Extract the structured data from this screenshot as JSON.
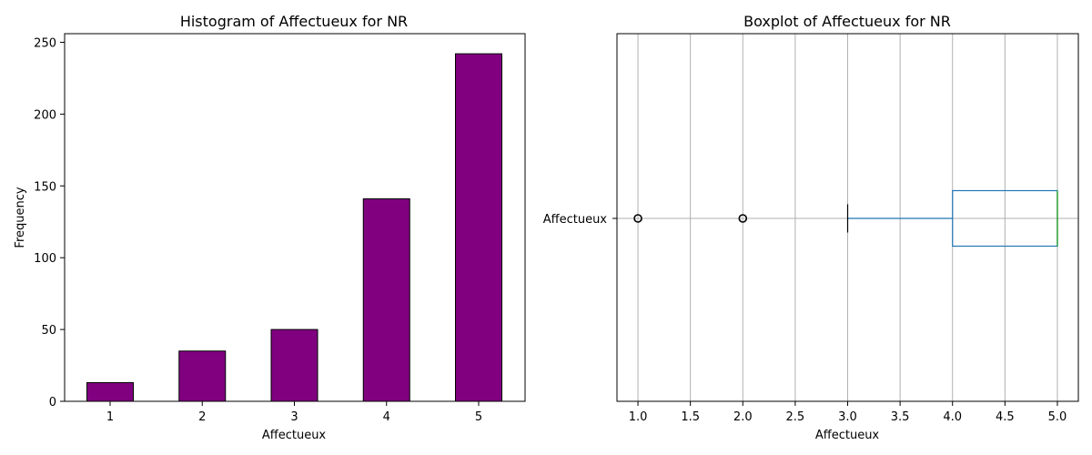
{
  "chart_data": [
    {
      "type": "bar",
      "title": "Histogram of Affectueux for NR",
      "xlabel": "Affectueux",
      "ylabel": "Frequency",
      "categories": [
        "1",
        "2",
        "3",
        "4",
        "5"
      ],
      "values": [
        13,
        35,
        50,
        141,
        242
      ],
      "ylim": [
        0,
        256
      ],
      "yticks": [
        0,
        50,
        100,
        150,
        200,
        250
      ],
      "bar_color": "#800080",
      "bar_edge": "#000000",
      "grid": false
    },
    {
      "type": "boxplot",
      "title": "Boxplot of Affectueux for NR",
      "xlabel": "Affectueux",
      "category_label": "Affectueux",
      "xlim": [
        0.8,
        5.2
      ],
      "xticks": [
        1.0,
        1.5,
        2.0,
        2.5,
        3.0,
        3.5,
        4.0,
        4.5,
        5.0
      ],
      "whisker_low": 3.0,
      "q1": 4.0,
      "median": 5.0,
      "q3": 5.0,
      "whisker_high": 5.0,
      "outliers": [
        1.0,
        2.0
      ],
      "box_color": "#1f77b4",
      "median_color": "#2ca02c",
      "grid": true
    }
  ]
}
